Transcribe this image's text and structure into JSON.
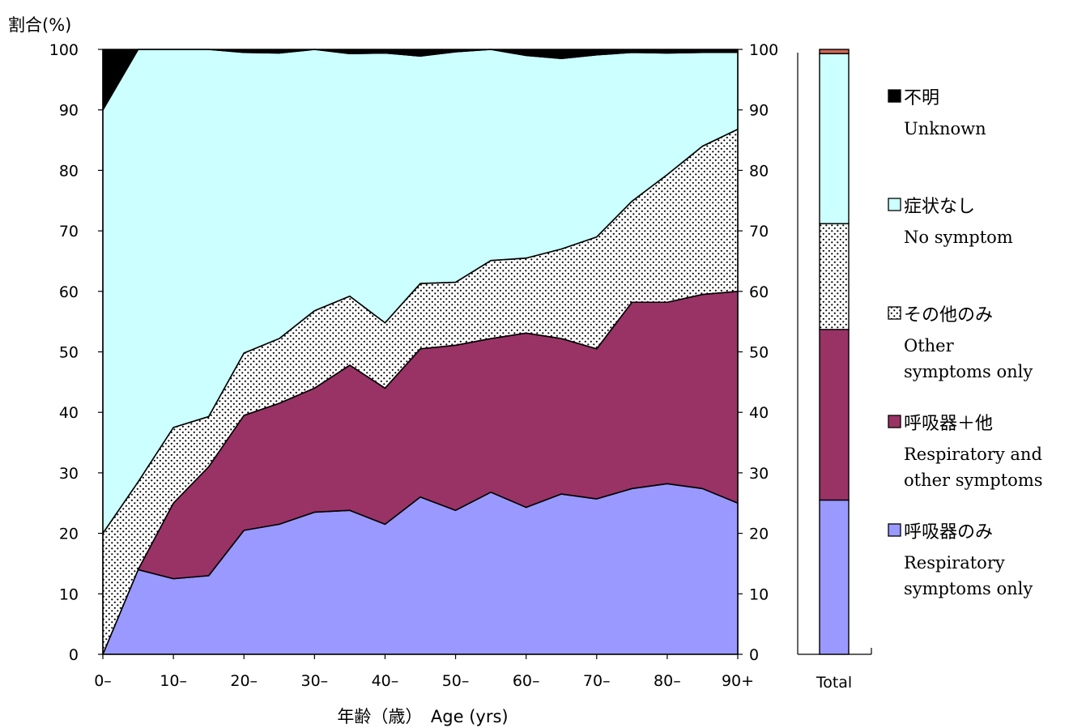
{
  "chart_data": {
    "type": "area",
    "stacked": true,
    "ylabel": "割合(%)",
    "xlabel": "年齢（歳）　Age (yrs)",
    "ylim": [
      0,
      100
    ],
    "yticks": [
      "0",
      "10",
      "20",
      "30",
      "40",
      "50",
      "60",
      "70",
      "80",
      "90",
      "100"
    ],
    "x": [
      0,
      5,
      10,
      15,
      20,
      25,
      30,
      35,
      40,
      45,
      50,
      55,
      60,
      65,
      70,
      75,
      80,
      85,
      90
    ],
    "xtick_labels": [
      "0–",
      "10–",
      "20–",
      "30–",
      "40–",
      "50–",
      "60–",
      "70–",
      "80–",
      "90+"
    ],
    "series": [
      {
        "name": "呼吸器のみ",
        "name_en": "Respiratory symptoms only",
        "color": "#9999ff",
        "pattern": "solid",
        "values": [
          0,
          14,
          12.5,
          13,
          20.5,
          21.5,
          23.5,
          23.8,
          21.5,
          26,
          23.8,
          26.8,
          24.3,
          26.5,
          25.7,
          27.4,
          28.2,
          27.4,
          25
        ]
      },
      {
        "name": "呼吸器＋他",
        "name_en": "Respiratory and other symptoms",
        "color": "#993366",
        "pattern": "solid",
        "values": [
          0,
          0,
          12.5,
          18,
          19,
          20,
          20.5,
          24,
          22.5,
          24.5,
          27.3,
          25.4,
          28.8,
          25.7,
          24.8,
          30.8,
          30,
          32.1,
          35
        ]
      },
      {
        "name": "その他のみ",
        "name_en": "Other symptoms only",
        "color": "#ffffff",
        "pattern": "dotted",
        "values": [
          20,
          14.5,
          12.5,
          8.3,
          10.3,
          10.7,
          12.8,
          11.4,
          10.8,
          10.8,
          10.4,
          12.9,
          12.4,
          14.8,
          18.5,
          16.7,
          21.1,
          24.5,
          26.8
        ]
      },
      {
        "name": "症状なし",
        "name_en": "No symptom",
        "color": "#ccffff",
        "pattern": "solid",
        "values": [
          70,
          71.5,
          62.5,
          60.7,
          49.7,
          47.2,
          43.2,
          40.1,
          44.6,
          37.6,
          38.1,
          34.9,
          33.5,
          31.5,
          30.1,
          24.6,
          20.1,
          15.5,
          12.7
        ]
      },
      {
        "name": "不明",
        "name_en": "Unknown",
        "color": "#000000",
        "pattern": "solid",
        "values": [
          10,
          0,
          0,
          0,
          0.5,
          0.6,
          0,
          0.7,
          0.6,
          1.1,
          0.4,
          0,
          1,
          1.5,
          0.9,
          0.5,
          0.6,
          0.5,
          0.5
        ]
      }
    ],
    "total_bar": {
      "label": "Total",
      "segments": [
        25.5,
        28.2,
        17.5,
        28.1,
        0.7
      ]
    },
    "legend": {
      "position": "right",
      "items": [
        {
          "marker": "■",
          "jp": "不明",
          "en": [
            "Unknown"
          ],
          "color": "#000000",
          "pattern": "solid"
        },
        {
          "marker": "□",
          "jp": "症状なし",
          "en": [
            "No symptom"
          ],
          "color": "#ccffff",
          "pattern": "solid"
        },
        {
          "marker": "▣",
          "jp": "その他のみ",
          "en": [
            "Other",
            "symptoms only"
          ],
          "color": "#ffffff",
          "pattern": "dotted"
        },
        {
          "marker": "■",
          "jp": "呼吸器＋他",
          "en": [
            "Respiratory and",
            "other symptoms"
          ],
          "color": "#993366",
          "pattern": "solid"
        },
        {
          "marker": "■",
          "jp": "呼吸器のみ",
          "en": [
            "Respiratory",
            "symptoms only"
          ],
          "color": "#9999ff",
          "pattern": "solid"
        }
      ]
    }
  }
}
